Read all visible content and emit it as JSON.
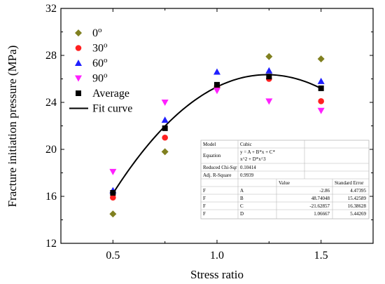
{
  "chart_data": {
    "type": "scatter",
    "xlabel": "Stress ratio",
    "ylabel": "Fracture initiation pressure (MPa)",
    "xlim": [
      0.25,
      1.75
    ],
    "ylim": [
      12,
      32
    ],
    "xticks": [
      {
        "value": 0.5,
        "label": "0.5"
      },
      {
        "value": 1.0,
        "label": "1.0"
      },
      {
        "value": 1.5,
        "label": "1.5"
      }
    ],
    "yticks": [
      {
        "value": 12,
        "label": "12"
      },
      {
        "value": 16,
        "label": "16"
      },
      {
        "value": 20,
        "label": "20"
      },
      {
        "value": 24,
        "label": "24"
      },
      {
        "value": 28,
        "label": "28"
      },
      {
        "value": 32,
        "label": "32"
      }
    ],
    "grid": false,
    "legend_position": "top-left",
    "x": [
      0.5,
      0.75,
      1.0,
      1.25,
      1.5
    ],
    "series": [
      {
        "name": "0",
        "superscript": "o",
        "marker": "diamond",
        "color": "#808020",
        "values": [
          14.5,
          19.8,
          25.3,
          27.9,
          27.7
        ]
      },
      {
        "name": "30",
        "superscript": "o",
        "marker": "circle",
        "color": "#ff2020",
        "values": [
          15.9,
          21.0,
          25.4,
          26.0,
          24.1
        ]
      },
      {
        "name": "60",
        "superscript": "o",
        "marker": "triangle-up",
        "color": "#2020ff",
        "values": [
          16.5,
          22.5,
          26.6,
          26.7,
          25.8
        ]
      },
      {
        "name": "90",
        "superscript": "o",
        "marker": "triangle-down",
        "color": "#ff20ff",
        "values": [
          18.1,
          24.0,
          25.0,
          24.1,
          23.3
        ]
      },
      {
        "name": "Average",
        "superscript": "",
        "marker": "square",
        "color": "#000000",
        "values": [
          16.3,
          21.8,
          25.5,
          26.2,
          25.2
        ]
      }
    ],
    "fit_curve": {
      "name": "Fit curve",
      "color": "#000000",
      "coefficients": {
        "A": -2.86,
        "B": 48.74048,
        "C": -21.62857,
        "D": 1.06667
      },
      "x_range": [
        0.5,
        1.5
      ]
    },
    "stats_table": {
      "rows": [
        [
          "Model",
          "Cubic"
        ],
        [
          "Equation",
          "y = A + B*x + C*x^2 + D*x^3"
        ],
        [
          "Reduced Chi-Sqr",
          "0.10414"
        ],
        [
          "Adj. R-Square",
          "0.9939"
        ]
      ],
      "param_header": [
        "",
        "",
        "Value",
        "Standard Error"
      ],
      "params": [
        [
          "F",
          "A",
          "-2.86",
          "4.47395"
        ],
        [
          "F",
          "B",
          "48.74048",
          "15.42589"
        ],
        [
          "F",
          "C",
          "-21.62857",
          "16.38628"
        ],
        [
          "F",
          "D",
          "1.06667",
          "5.44269"
        ]
      ]
    }
  }
}
